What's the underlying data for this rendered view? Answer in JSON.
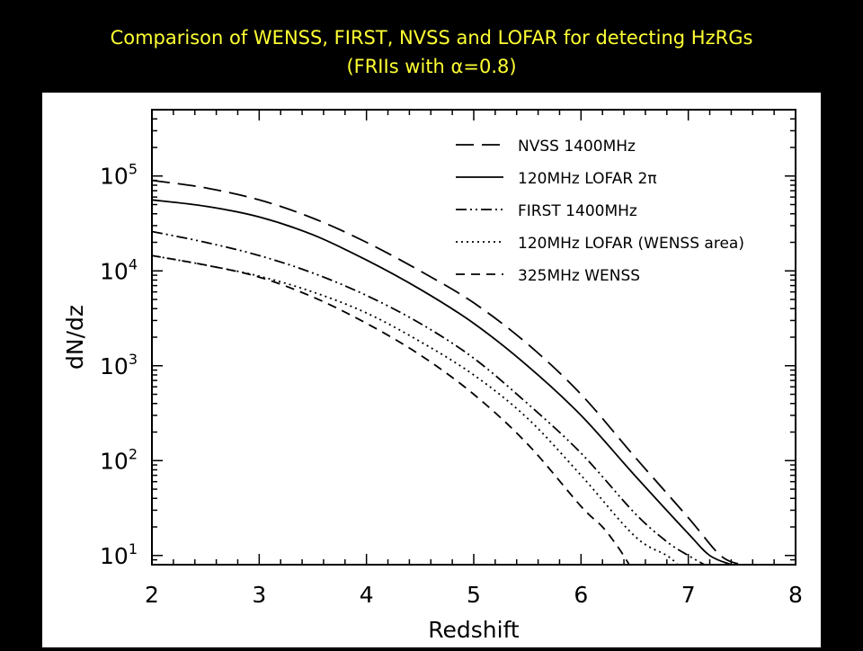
{
  "slide": {
    "title_line1": "Comparison of WENSS, FIRST, NVSS and LOFAR for detecting HzRGs",
    "title_line2": "(FRIIs with α=0.8)"
  },
  "colors": {
    "background": "#000000",
    "title": "#ffff33",
    "plot_background": "#ffffff",
    "lines": "#000000"
  },
  "chart_data": {
    "type": "line",
    "title": "",
    "xlabel": "Redshift",
    "ylabel": "dN/dz",
    "xlim": [
      2,
      8
    ],
    "ylim": [
      8,
      500000
    ],
    "yscale": "log",
    "xticks": [
      2,
      3,
      4,
      5,
      6,
      7,
      8
    ],
    "xtick_labels": [
      "2",
      "3",
      "4",
      "5",
      "6",
      "7",
      "8"
    ],
    "yticks": [
      10,
      100,
      1000,
      10000,
      100000
    ],
    "ytick_labels": [
      {
        "base": "10",
        "exp": "1"
      },
      {
        "base": "10",
        "exp": "2"
      },
      {
        "base": "10",
        "exp": "3"
      },
      {
        "base": "10",
        "exp": "4"
      },
      {
        "base": "10",
        "exp": "5"
      }
    ],
    "grid": false,
    "legend_position": "top-right",
    "series": [
      {
        "name": "NVSS 1400MHz",
        "dash": "long-dash",
        "x": [
          2.0,
          2.5,
          3.0,
          3.5,
          4.0,
          4.5,
          5.0,
          5.5,
          6.0,
          6.5,
          7.0,
          7.3,
          7.5
        ],
        "y": [
          90000,
          75000,
          56000,
          36000,
          20000,
          10000,
          4600,
          1700,
          500,
          110,
          25,
          10,
          8
        ]
      },
      {
        "name": "120MHz LOFAR 2π",
        "dash": "solid",
        "x": [
          2.0,
          2.5,
          3.0,
          3.5,
          4.0,
          4.5,
          5.0,
          5.5,
          6.0,
          6.5,
          7.0,
          7.2,
          7.4
        ],
        "y": [
          56000,
          48000,
          37000,
          24000,
          13000,
          6400,
          2800,
          1000,
          300,
          70,
          17,
          10,
          8
        ]
      },
      {
        "name": "FIRST 1400MHz",
        "dash": "dash-dot-dot",
        "x": [
          2.0,
          2.5,
          3.0,
          3.5,
          4.0,
          4.5,
          5.0,
          5.5,
          6.0,
          6.5,
          6.8,
          7.0,
          7.15
        ],
        "y": [
          26000,
          20000,
          14500,
          9500,
          5500,
          2800,
          1200,
          400,
          120,
          28,
          14,
          10,
          8
        ]
      },
      {
        "name": "120MHz LOFAR (WENSS area)",
        "dash": "dotted",
        "x": [
          2.0,
          2.5,
          3.0,
          3.5,
          4.0,
          4.5,
          5.0,
          5.5,
          6.0,
          6.5,
          6.8,
          6.9
        ],
        "y": [
          14500,
          11500,
          8800,
          6000,
          3600,
          1800,
          800,
          280,
          70,
          16,
          10,
          8
        ]
      },
      {
        "name": "325MHz WENSS",
        "dash": "short-dash",
        "x": [
          2.0,
          2.5,
          3.0,
          3.5,
          4.0,
          4.5,
          5.0,
          5.5,
          6.0,
          6.2,
          6.35,
          6.45
        ],
        "y": [
          14500,
          11500,
          8600,
          5300,
          2800,
          1300,
          500,
          150,
          33,
          20,
          12,
          8
        ]
      }
    ]
  }
}
